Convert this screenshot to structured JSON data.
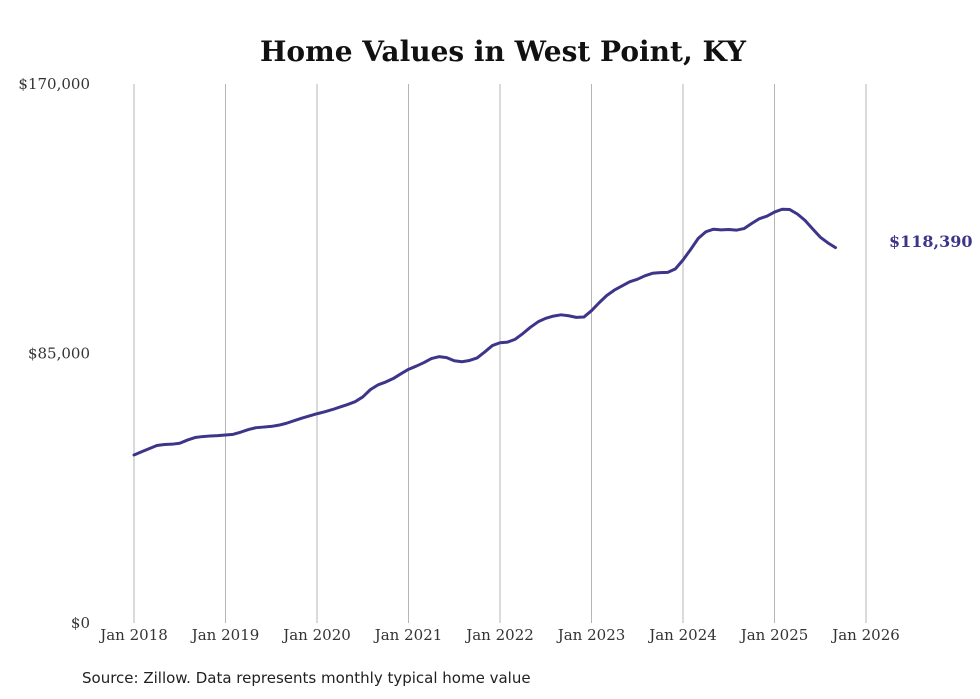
{
  "chart_data": {
    "type": "line",
    "title": "Home Values in West Point, KY",
    "source_note": "Source: Zillow. Data represents monthly typical home value",
    "ylim": [
      0,
      170000
    ],
    "y_ticks": [
      {
        "value": 0,
        "label": "$0"
      },
      {
        "value": 85000,
        "label": "$85,000"
      },
      {
        "value": 170000,
        "label": "$170,000"
      }
    ],
    "x_ticks": [
      "Jan 2018",
      "Jan 2019",
      "Jan 2020",
      "Jan 2021",
      "Jan 2022",
      "Jan 2023",
      "Jan 2024",
      "Jan 2025",
      "Jan 2026"
    ],
    "grid": {
      "vertical": true,
      "horizontal": false
    },
    "line_color": "#3d3589",
    "end_label": "$118,390",
    "series": [
      {
        "x_start": "Jan 2018",
        "frequency": "monthly",
        "values": [
          53000,
          54000,
          55000,
          56000,
          56300,
          56400,
          56700,
          57700,
          58500,
          58800,
          59000,
          59100,
          59300,
          59500,
          60200,
          61000,
          61600,
          61800,
          62000,
          62400,
          63000,
          63800,
          64600,
          65300,
          66000,
          66600,
          67300,
          68100,
          68900,
          69800,
          71300,
          73600,
          75100,
          76000,
          77100,
          78600,
          80000,
          81000,
          82100,
          83400,
          84000,
          83700,
          82700,
          82400,
          82800,
          83600,
          85500,
          87500,
          88400,
          88600,
          89500,
          91300,
          93300,
          95000,
          96100,
          96800,
          97200,
          96900,
          96400,
          96500,
          98500,
          101000,
          103300,
          105000,
          106300,
          107600,
          108400,
          109500,
          110300,
          110500,
          110600,
          111700,
          114500,
          117800,
          121300,
          123400,
          124200,
          124000,
          124100,
          123900,
          124400,
          126000,
          127500,
          128300,
          129600,
          130500,
          130400,
          129000,
          127000,
          124300,
          121700,
          119900,
          118390
        ]
      }
    ]
  }
}
